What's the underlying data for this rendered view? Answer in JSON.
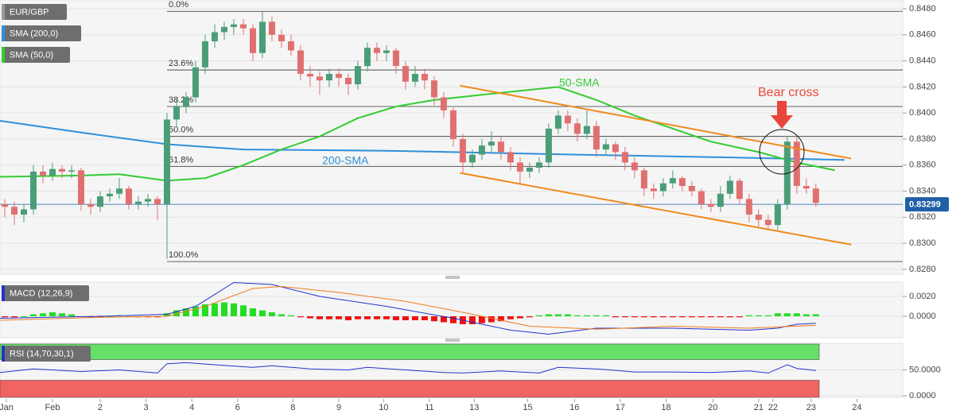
{
  "chart_data": [
    {
      "type": "candlestick",
      "instrument": "EUR/GBP",
      "xlim": [
        -0.5,
        94.1
      ],
      "ylim": [
        0.82763,
        0.84867
      ],
      "yticks": [
        {
          "value": 0.848,
          "label": "0.8480"
        },
        {
          "value": 0.846,
          "label": "0.8460"
        },
        {
          "value": 0.844,
          "label": "0.8440"
        },
        {
          "value": 0.842,
          "label": "0.8420"
        },
        {
          "value": 0.84,
          "label": "0.8400"
        },
        {
          "value": 0.838,
          "label": "0.8380"
        },
        {
          "value": 0.836,
          "label": "0.8360"
        },
        {
          "value": 0.834,
          "label": "0.8340"
        },
        {
          "value": 0.832,
          "label": "0.8320"
        },
        {
          "value": 0.83,
          "label": "0.8300"
        },
        {
          "value": 0.828,
          "label": "0.8280"
        }
      ],
      "xticks": [
        {
          "value": 0,
          "label": "Jan"
        },
        {
          "value": 5,
          "label": "Feb"
        },
        {
          "value": 10,
          "label": "2"
        },
        {
          "value": 14.8,
          "label": "3"
        },
        {
          "value": 19.6,
          "label": "4"
        },
        {
          "value": 24.4,
          "label": "6"
        },
        {
          "value": 30.2,
          "label": "8"
        },
        {
          "value": 35,
          "label": "9"
        },
        {
          "value": 39.7,
          "label": "10"
        },
        {
          "value": 44.5,
          "label": "11"
        },
        {
          "value": 49.2,
          "label": "13"
        },
        {
          "value": 54.8,
          "label": "15"
        },
        {
          "value": 59.7,
          "label": "16"
        },
        {
          "value": 64.5,
          "label": "17"
        },
        {
          "value": 69.3,
          "label": "18"
        },
        {
          "value": 74.2,
          "label": "20"
        },
        {
          "value": 79,
          "label": "21"
        },
        {
          "value": 80.5,
          "label": "22"
        },
        {
          "value": 84.5,
          "label": "23"
        },
        {
          "value": 89.3,
          "label": "24"
        }
      ],
      "up_color": "#4a9d78",
      "down_color": "#e07070",
      "candles": [
        [
          0.833,
          0.8334,
          0.832,
          0.8328
        ],
        [
          0.8328,
          0.8332,
          0.8314,
          0.8322
        ],
        [
          0.8322,
          0.833,
          0.8316,
          0.8326
        ],
        [
          0.8326,
          0.836,
          0.8322,
          0.8355
        ],
        [
          0.8355,
          0.836,
          0.8346,
          0.8352
        ],
        [
          0.8352,
          0.8362,
          0.8348,
          0.8357
        ],
        [
          0.8357,
          0.836,
          0.835,
          0.8355
        ],
        [
          0.8355,
          0.836,
          0.835,
          0.8356
        ],
        [
          0.8356,
          0.8358,
          0.8325,
          0.833
        ],
        [
          0.833,
          0.8334,
          0.8322,
          0.8328
        ],
        [
          0.8328,
          0.834,
          0.8324,
          0.8336
        ],
        [
          0.8336,
          0.8342,
          0.8332,
          0.8338
        ],
        [
          0.8338,
          0.835,
          0.8334,
          0.8342
        ],
        [
          0.8342,
          0.8344,
          0.8326,
          0.833
        ],
        [
          0.833,
          0.8336,
          0.8326,
          0.8332
        ],
        [
          0.8332,
          0.8338,
          0.8328,
          0.8334
        ],
        [
          0.8334,
          0.8336,
          0.8318,
          0.833
        ],
        [
          0.833,
          0.84,
          0.8288,
          0.8395
        ],
        [
          0.8395,
          0.841,
          0.839,
          0.8405
        ],
        [
          0.8405,
          0.8416,
          0.84,
          0.8412
        ],
        [
          0.8412,
          0.844,
          0.8408,
          0.8435
        ],
        [
          0.8435,
          0.846,
          0.843,
          0.8455
        ],
        [
          0.8455,
          0.8468,
          0.845,
          0.8462
        ],
        [
          0.8462,
          0.847,
          0.8456,
          0.8466
        ],
        [
          0.8466,
          0.8472,
          0.846,
          0.8468
        ],
        [
          0.8468,
          0.8472,
          0.846,
          0.8465
        ],
        [
          0.8465,
          0.8468,
          0.844,
          0.8446
        ],
        [
          0.8446,
          0.8478,
          0.8442,
          0.847
        ],
        [
          0.847,
          0.8474,
          0.8455,
          0.846
        ],
        [
          0.846,
          0.8464,
          0.845,
          0.8455
        ],
        [
          0.8455,
          0.846,
          0.8444,
          0.8448
        ],
        [
          0.8448,
          0.8452,
          0.8425,
          0.843
        ],
        [
          0.843,
          0.8436,
          0.842,
          0.8428
        ],
        [
          0.8428,
          0.8432,
          0.8414,
          0.8425
        ],
        [
          0.8425,
          0.8434,
          0.842,
          0.843
        ],
        [
          0.843,
          0.8434,
          0.842,
          0.8427
        ],
        [
          0.8427,
          0.843,
          0.8414,
          0.8422
        ],
        [
          0.8422,
          0.844,
          0.8418,
          0.8436
        ],
        [
          0.8436,
          0.8454,
          0.8432,
          0.845
        ],
        [
          0.845,
          0.8454,
          0.844,
          0.8446
        ],
        [
          0.8446,
          0.8452,
          0.844,
          0.8448
        ],
        [
          0.8448,
          0.845,
          0.843,
          0.8436
        ],
        [
          0.8436,
          0.844,
          0.8418,
          0.8424
        ],
        [
          0.8424,
          0.8436,
          0.842,
          0.843
        ],
        [
          0.843,
          0.8434,
          0.8418,
          0.8425
        ],
        [
          0.8425,
          0.8428,
          0.8406,
          0.8412
        ],
        [
          0.8412,
          0.8416,
          0.8396,
          0.8402
        ],
        [
          0.8402,
          0.8404,
          0.8374,
          0.838
        ],
        [
          0.838,
          0.8384,
          0.8354,
          0.8362
        ],
        [
          0.8362,
          0.8372,
          0.8358,
          0.8368
        ],
        [
          0.8368,
          0.838,
          0.8364,
          0.8375
        ],
        [
          0.8375,
          0.8386,
          0.837,
          0.8378
        ],
        [
          0.8378,
          0.8382,
          0.8364,
          0.837
        ],
        [
          0.837,
          0.8374,
          0.8356,
          0.8362
        ],
        [
          0.8362,
          0.8366,
          0.8346,
          0.8355
        ],
        [
          0.8355,
          0.8362,
          0.835,
          0.8358
        ],
        [
          0.8358,
          0.8366,
          0.8354,
          0.8362
        ],
        [
          0.8362,
          0.8392,
          0.8358,
          0.8388
        ],
        [
          0.8388,
          0.8402,
          0.8384,
          0.8398
        ],
        [
          0.8398,
          0.8402,
          0.8386,
          0.8392
        ],
        [
          0.8392,
          0.8396,
          0.8378,
          0.8384
        ],
        [
          0.8384,
          0.8402,
          0.838,
          0.839
        ],
        [
          0.839,
          0.8394,
          0.8366,
          0.8372
        ],
        [
          0.8372,
          0.838,
          0.8368,
          0.8376
        ],
        [
          0.8376,
          0.8378,
          0.8364,
          0.837
        ],
        [
          0.837,
          0.8374,
          0.8356,
          0.8362
        ],
        [
          0.8362,
          0.8366,
          0.835,
          0.8356
        ],
        [
          0.8356,
          0.8358,
          0.8336,
          0.8342
        ],
        [
          0.8342,
          0.8346,
          0.8334,
          0.834
        ],
        [
          0.834,
          0.835,
          0.8336,
          0.8346
        ],
        [
          0.8346,
          0.8356,
          0.8342,
          0.835
        ],
        [
          0.835,
          0.8352,
          0.834,
          0.8344
        ],
        [
          0.8344,
          0.8348,
          0.8336,
          0.834
        ],
        [
          0.834,
          0.8342,
          0.8326,
          0.833
        ],
        [
          0.833,
          0.8334,
          0.8324,
          0.8328
        ],
        [
          0.8328,
          0.8344,
          0.8324,
          0.8338
        ],
        [
          0.8338,
          0.8352,
          0.8334,
          0.8348
        ],
        [
          0.8348,
          0.835,
          0.833,
          0.8334
        ],
        [
          0.8334,
          0.8338,
          0.8316,
          0.8322
        ],
        [
          0.8322,
          0.8326,
          0.8312,
          0.8318
        ],
        [
          0.8318,
          0.8322,
          0.831,
          0.8314
        ],
        [
          0.8314,
          0.8334,
          0.831,
          0.833
        ],
        [
          0.833,
          0.8382,
          0.8326,
          0.8378
        ],
        [
          0.8378,
          0.8382,
          0.8338,
          0.8344
        ],
        [
          0.8344,
          0.835,
          0.8338,
          0.8342
        ],
        [
          0.8342,
          0.8346,
          0.8328,
          0.8331
        ]
      ],
      "last_price": 0.83299,
      "last_price_color": "#1f5fa8",
      "series": [
        {
          "name": "SMA (200,0)",
          "label": "200-SMA",
          "color": "#2f8fd8",
          "x": [
            -0.5,
            8,
            17,
            25,
            40,
            60,
            75,
            88
          ],
          "values": [
            0.8394,
            0.8385,
            0.8376,
            0.8372,
            0.8371,
            0.8368,
            0.8366,
            0.8364
          ]
        },
        {
          "name": "SMA (50,0)",
          "label": "50-SMA",
          "color": "#33cc33",
          "x": [
            -0.5,
            8,
            12,
            17,
            21,
            25,
            29,
            33,
            37,
            41,
            45,
            50,
            54,
            58,
            62,
            66,
            70,
            74,
            79,
            83,
            85,
            87
          ],
          "values": [
            0.8351,
            0.8352,
            0.8353,
            0.8348,
            0.835,
            0.836,
            0.8372,
            0.8382,
            0.8396,
            0.8405,
            0.841,
            0.8414,
            0.8417,
            0.842,
            0.841,
            0.8398,
            0.8388,
            0.8378,
            0.837,
            0.8362,
            0.8359,
            0.8356
          ]
        }
      ],
      "fib_levels": [
        {
          "label": "0.0%",
          "value": 0.8478
        },
        {
          "label": "23.6%",
          "value": 0.8433
        },
        {
          "label": "38.2%",
          "value": 0.8405
        },
        {
          "label": "50.0%",
          "value": 0.8382
        },
        {
          "label": "61.8%",
          "value": 0.8359
        },
        {
          "label": "100.0%",
          "value": 0.8286
        }
      ],
      "trendlines": [
        {
          "color": "#f08a1c",
          "x": [
            47.7,
            88.7
          ],
          "values": [
            0.8421,
            0.8365
          ]
        },
        {
          "color": "#f08a1c",
          "x": [
            47.7,
            88.7
          ],
          "values": [
            0.8354,
            0.8299
          ]
        }
      ],
      "annotation": "Bear cross",
      "annotation_color": "#e8463a"
    },
    {
      "type": "macd",
      "name": "MACD (12,26,9)",
      "xlim": [
        -0.5,
        94.1
      ],
      "ylim": [
        -0.00216,
        0.00344
      ],
      "yticks": [
        {
          "value": 0.002,
          "label": "0.0020"
        },
        {
          "value": 0,
          "label": "0.0000"
        }
      ],
      "histogram": [
        -0.0001,
        -0.0001,
        0,
        0.0002,
        0.0003,
        0.0004,
        0.0003,
        0.0002,
        0,
        -0.0001,
        -0.0001,
        0,
        0.0001,
        0,
        -0.0001,
        -0.0001,
        -0.0001,
        0.0003,
        0.0006,
        0.0008,
        0.001,
        0.0012,
        0.0013,
        0.0014,
        0.0013,
        0.0011,
        0.0008,
        0.0006,
        0.0004,
        0.0002,
        0.0001,
        -0.0001,
        -0.0002,
        -0.0003,
        -0.0003,
        -0.0003,
        -0.0004,
        -0.0003,
        -0.0003,
        -0.0003,
        -0.0003,
        -0.0004,
        -0.0004,
        -0.0004,
        -0.0004,
        -0.0005,
        -0.0006,
        -0.0007,
        -0.0008,
        -0.0008,
        -0.0007,
        -0.0006,
        -0.0005,
        -0.0003,
        -0.0002,
        -0.0001,
        0.0001,
        0.0002,
        0.0002,
        0.0002,
        0.0001,
        0.0001,
        0.0001,
        0.0001,
        -0.0001,
        -0.0001,
        -0.0001,
        -0.0001,
        -0.0001,
        -0.0001,
        -0.0001,
        -0.0001,
        -0.0001,
        -0.0001,
        -0.0001,
        -0.0001,
        -0.0001,
        -0.0001,
        0.0001,
        0.0001,
        0.0001,
        0.0003,
        0.0003,
        0.0003,
        0.0002,
        0.0002
      ],
      "up_color": "#22dd22",
      "down_color": "#ee1111",
      "series": [
        {
          "color": "#2233cc",
          "x": [
            -0.5,
            10,
            17,
            20,
            24,
            28,
            33,
            40,
            47,
            53,
            57,
            62,
            70,
            78,
            81,
            83,
            85
          ],
          "values": [
            -0.0002,
            0,
            0.0002,
            0.001,
            0.0034,
            0.0032,
            0.002,
            0.001,
            -0.0002,
            -0.0014,
            -0.0018,
            -0.0012,
            -0.0012,
            -0.0014,
            -0.0012,
            -0.0008,
            -0.0007
          ]
        },
        {
          "color": "#f07b20",
          "x": [
            -0.5,
            10,
            17,
            21,
            26,
            29,
            35,
            42,
            48,
            55,
            62,
            70,
            78,
            85
          ],
          "values": [
            -0.0004,
            -0.0001,
            0,
            0.001,
            0.0028,
            0.003,
            0.0024,
            0.0015,
            0.0004,
            -0.001,
            -0.0013,
            -0.001,
            -0.0012,
            -0.0009
          ]
        }
      ]
    },
    {
      "type": "rsi",
      "name": "RSI (14,70,30,1)",
      "xlim": [
        -0.5,
        94.1
      ],
      "ylim": [
        -3,
        101.5
      ],
      "yticks": [
        {
          "value": 50,
          "label": "50.0000"
        },
        {
          "value": 0,
          "label": "0.0000"
        }
      ],
      "zones": [
        {
          "range": [
            70,
            100
          ],
          "color": "#66e066"
        },
        {
          "range": [
            0,
            30
          ],
          "color": "#f06464"
        }
      ],
      "series": [
        {
          "color": "#2233cc",
          "x": [
            -0.5,
            3,
            8,
            12,
            16,
            17,
            19,
            22,
            26,
            28,
            32,
            36,
            38,
            42,
            46,
            48,
            52,
            56,
            58,
            62,
            66,
            70,
            74,
            78,
            80,
            81,
            82,
            83,
            85
          ],
          "values": [
            45,
            52,
            47,
            50,
            44,
            62,
            64,
            60,
            55,
            58,
            52,
            50,
            55,
            50,
            45,
            44,
            48,
            44,
            55,
            52,
            46,
            46,
            45,
            48,
            44,
            52,
            60,
            53,
            49
          ]
        }
      ]
    }
  ]
}
